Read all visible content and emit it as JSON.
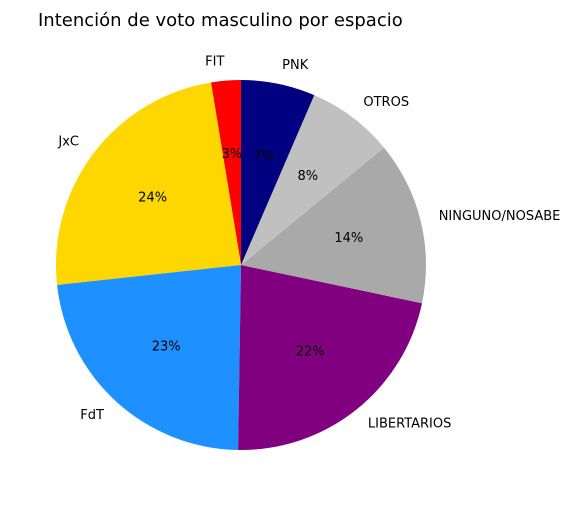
{
  "chart_data": {
    "type": "pie",
    "title": "Intención de voto masculino por espacio",
    "start_angle": 90,
    "direction": "counterclockwise",
    "slices": [
      {
        "label": "FIT",
        "value": 2.6,
        "pct_label": "3%",
        "color": "#ff0000"
      },
      {
        "label": "JxC",
        "value": 24.2,
        "pct_label": "24%",
        "color": "#ffd700"
      },
      {
        "label": "FdT",
        "value": 23.1,
        "pct_label": "23%",
        "color": "#1e90ff"
      },
      {
        "label": "LIBERTARIOS",
        "value": 22.0,
        "pct_label": "22%",
        "color": "#800080"
      },
      {
        "label": "NINGUNO/NOSABE",
        "value": 14.3,
        "pct_label": "14%",
        "color": "#a9a9a9"
      },
      {
        "label": "OTROS",
        "value": 7.6,
        "pct_label": "8%",
        "color": "#c0c0c0"
      },
      {
        "label": "PNK",
        "value": 6.5,
        "pct_label": "7%",
        "color": "#000080"
      }
    ]
  }
}
